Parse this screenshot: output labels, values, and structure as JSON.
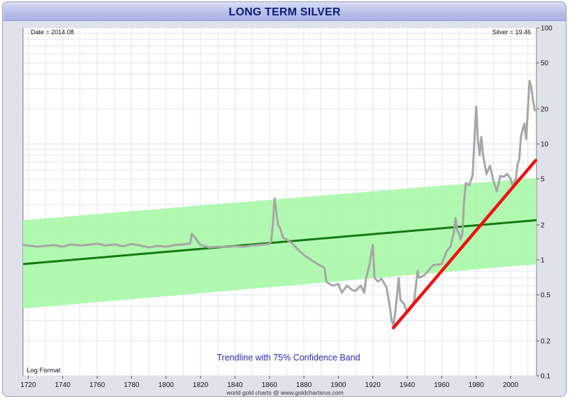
{
  "chart_data": {
    "type": "line",
    "title": "LONG TERM SILVER",
    "y_scale": "log",
    "xlim": [
      1717,
      2015
    ],
    "ylim": [
      0.1,
      100
    ],
    "x_ticks": [
      1720,
      1740,
      1760,
      1780,
      1800,
      1820,
      1840,
      1860,
      1880,
      1900,
      1920,
      1940,
      1960,
      1980,
      2000
    ],
    "y_ticks": [
      0.1,
      0.2,
      0.5,
      1,
      2,
      5,
      10,
      20,
      50,
      100
    ],
    "y_tick_labels": [
      "0.1",
      "0.2",
      "0.5",
      "1",
      "2",
      "5",
      "10",
      "20",
      "50",
      "100"
    ],
    "grid": true,
    "date_label": "Date = 2014.08",
    "value_label": "Silver = 19.46",
    "scale_note": "Log Format",
    "band_label": "Trendline with 75% Confidence Band",
    "source": "world gold charts @ www.goldchartsrus.com",
    "colors": {
      "price": "#a6a6a6",
      "trend": "#137a13",
      "band": "#a8f7a8",
      "support": "#ee1111",
      "band_label": "#2a2ab8"
    },
    "series": [
      {
        "role": "price",
        "x": [
          1717,
          1720,
          1725,
          1730,
          1735,
          1740,
          1745,
          1750,
          1755,
          1760,
          1765,
          1770,
          1775,
          1780,
          1785,
          1790,
          1795,
          1800,
          1805,
          1810,
          1814,
          1815,
          1820,
          1825,
          1830,
          1835,
          1840,
          1845,
          1850,
          1855,
          1858,
          1860,
          1861,
          1862,
          1863,
          1864,
          1865,
          1866,
          1868,
          1870,
          1873,
          1876,
          1880,
          1885,
          1888,
          1892,
          1893,
          1894,
          1897,
          1900,
          1902,
          1905,
          1908,
          1910,
          1913,
          1915,
          1916,
          1918,
          1919,
          1920,
          1921,
          1923,
          1925,
          1928,
          1930,
          1931,
          1932,
          1933,
          1934,
          1935,
          1936,
          1938,
          1940,
          1942,
          1944,
          1946,
          1947,
          1950,
          1955,
          1960,
          1963,
          1965,
          1967,
          1968,
          1969,
          1970,
          1971,
          1972,
          1973,
          1974,
          1975,
          1976,
          1978,
          1979,
          1980,
          1981,
          1982,
          1983,
          1984,
          1986,
          1988,
          1990,
          1992,
          1994,
          1996,
          1998,
          2000,
          2001,
          2003,
          2004,
          2005,
          2006,
          2007,
          2008,
          2009,
          2010,
          2011,
          2012,
          2013,
          2014.08
        ],
        "values": [
          1.34,
          1.33,
          1.3,
          1.32,
          1.34,
          1.3,
          1.36,
          1.33,
          1.35,
          1.38,
          1.33,
          1.36,
          1.31,
          1.37,
          1.33,
          1.28,
          1.32,
          1.3,
          1.34,
          1.36,
          1.38,
          1.68,
          1.35,
          1.28,
          1.3,
          1.29,
          1.31,
          1.3,
          1.33,
          1.35,
          1.36,
          1.38,
          1.45,
          2.0,
          3.4,
          2.6,
          2.0,
          1.9,
          1.55,
          1.5,
          1.4,
          1.25,
          1.1,
          0.98,
          0.92,
          0.85,
          0.65,
          0.63,
          0.6,
          0.62,
          0.52,
          0.6,
          0.55,
          0.54,
          0.6,
          0.52,
          0.68,
          0.9,
          1.1,
          1.35,
          0.7,
          0.65,
          0.69,
          0.58,
          0.38,
          0.3,
          0.27,
          0.35,
          0.48,
          0.7,
          0.45,
          0.42,
          0.35,
          0.38,
          0.44,
          0.8,
          0.7,
          0.74,
          0.9,
          0.92,
          1.2,
          1.29,
          1.7,
          2.3,
          1.8,
          1.7,
          1.5,
          1.68,
          3.2,
          4.6,
          4.5,
          4.4,
          5.4,
          11.0,
          21.0,
          11.0,
          8.0,
          11.5,
          8.0,
          5.5,
          6.5,
          4.8,
          3.9,
          5.3,
          5.2,
          5.5,
          5.0,
          4.4,
          4.9,
          6.7,
          7.3,
          11.5,
          13.4,
          15.0,
          11.0,
          20.0,
          35.0,
          31.0,
          23.5,
          19.46
        ]
      },
      {
        "role": "trendline",
        "x": [
          1717,
          2015
        ],
        "values": [
          0.92,
          2.2
        ]
      },
      {
        "role": "confidence_band",
        "x": [
          1717,
          2015
        ],
        "lower": [
          0.38,
          0.92
        ],
        "upper": [
          2.2,
          5.1
        ]
      },
      {
        "role": "support_line",
        "x": [
          1932,
          2014.5
        ],
        "values": [
          0.26,
          7.2
        ]
      }
    ]
  }
}
